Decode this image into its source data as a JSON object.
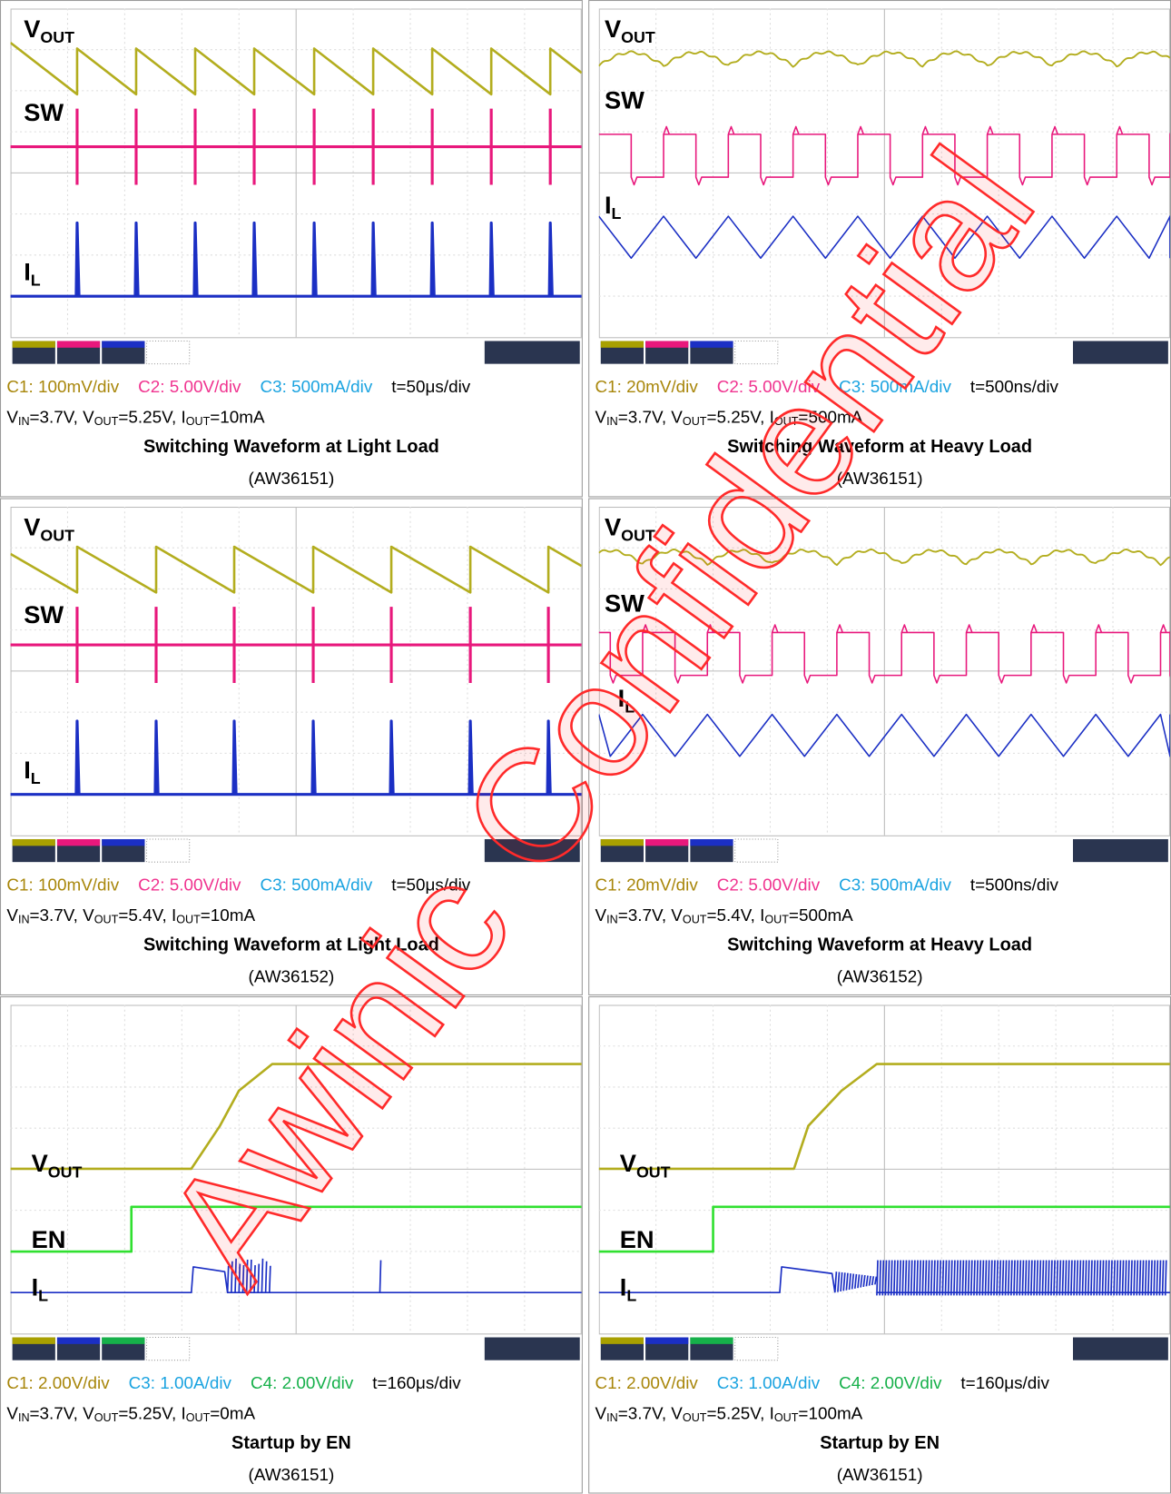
{
  "watermark": "Awinic Confidential",
  "panels": [
    {
      "scope_labels": [
        {
          "main": "V",
          "sub": "OUT"
        },
        {
          "main": "SW"
        },
        {
          "main": "I",
          "sub": "L"
        }
      ],
      "channels": [
        {
          "text": "C1: 100mV/div",
          "color": "#a8860a"
        },
        {
          "text": "C2: 5.00V/div",
          "color": "#f0338f"
        },
        {
          "text": "C3: 500mA/div",
          "color": "#1aa3e0"
        }
      ],
      "timebase": "t=50μs/div",
      "conditions": [
        {
          "text": "V"
        },
        {
          "sub": "IN"
        },
        {
          "text": "=3.7V, V"
        },
        {
          "sub": "OUT"
        },
        {
          "text": "=5.25V, I"
        },
        {
          "sub": "OUT"
        },
        {
          "text": "=10mA"
        }
      ],
      "title": "Switching Waveform at Light Load",
      "part": "(AW36151)"
    },
    {
      "scope_labels": [
        {
          "main": "V",
          "sub": "OUT"
        },
        {
          "main": "SW"
        },
        {
          "main": "I",
          "sub": "L"
        }
      ],
      "channels": [
        {
          "text": "C1: 20mV/div",
          "color": "#a8860a"
        },
        {
          "text": "C2: 5.00V/div",
          "color": "#f0338f"
        },
        {
          "text": "C3: 500mA/div",
          "color": "#1aa3e0"
        }
      ],
      "timebase": "t=500ns/div",
      "conditions": [
        {
          "text": "V"
        },
        {
          "sub": "IN"
        },
        {
          "text": "=3.7V, V"
        },
        {
          "sub": "OUT"
        },
        {
          "text": "=5.25V, I"
        },
        {
          "sub": "OUT"
        },
        {
          "text": "=500mA"
        }
      ],
      "title": "Switching Waveform at Heavy Load",
      "part": "(AW36151)"
    },
    {
      "scope_labels": [
        {
          "main": "V",
          "sub": "OUT"
        },
        {
          "main": "SW"
        },
        {
          "main": "I",
          "sub": "L"
        }
      ],
      "channels": [
        {
          "text": "C1: 100mV/div",
          "color": "#a8860a"
        },
        {
          "text": "C2: 5.00V/div",
          "color": "#f0338f"
        },
        {
          "text": "C3: 500mA/div",
          "color": "#1aa3e0"
        }
      ],
      "timebase": "t=50μs/div",
      "conditions": [
        {
          "text": "V"
        },
        {
          "sub": "IN"
        },
        {
          "text": "=3.7V, V"
        },
        {
          "sub": "OUT"
        },
        {
          "text": "=5.4V, I"
        },
        {
          "sub": "OUT"
        },
        {
          "text": "=10mA"
        }
      ],
      "title": "Switching Waveform at Light Load",
      "part": "(AW36152)"
    },
    {
      "scope_labels": [
        {
          "main": "V",
          "sub": "OUT"
        },
        {
          "main": "SW"
        },
        {
          "main": "I",
          "sub": "L"
        }
      ],
      "channels": [
        {
          "text": "C1: 20mV/div",
          "color": "#a8860a"
        },
        {
          "text": "C2: 5.00V/div",
          "color": "#f0338f"
        },
        {
          "text": "C3: 500mA/div",
          "color": "#1aa3e0"
        }
      ],
      "timebase": "t=500ns/div",
      "conditions": [
        {
          "text": "V"
        },
        {
          "sub": "IN"
        },
        {
          "text": "=3.7V, V"
        },
        {
          "sub": "OUT"
        },
        {
          "text": "=5.4V, I"
        },
        {
          "sub": "OUT"
        },
        {
          "text": "=500mA"
        }
      ],
      "title": "Switching Waveform at Heavy Load",
      "part": "(AW36152)"
    },
    {
      "scope_labels": [
        {
          "main": "V",
          "sub": "OUT"
        },
        {
          "main": "EN"
        },
        {
          "main": "I",
          "sub": "L"
        }
      ],
      "channels": [
        {
          "text": "C1: 2.00V/div",
          "color": "#a8860a"
        },
        {
          "text": "C3: 1.00A/div",
          "color": "#1aa3e0"
        },
        {
          "text": "C4: 2.00V/div",
          "color": "#16b04a"
        }
      ],
      "timebase": "t=160μs/div",
      "conditions": [
        {
          "text": "V"
        },
        {
          "sub": "IN"
        },
        {
          "text": "=3.7V, V"
        },
        {
          "sub": "OUT"
        },
        {
          "text": "=5.25V, I"
        },
        {
          "sub": "OUT"
        },
        {
          "text": "=0mA"
        }
      ],
      "title": "Startup by EN",
      "part": "(AW36151)"
    },
    {
      "scope_labels": [
        {
          "main": "V",
          "sub": "OUT"
        },
        {
          "main": "EN"
        },
        {
          "main": "I",
          "sub": "L"
        }
      ],
      "channels": [
        {
          "text": "C1: 2.00V/div",
          "color": "#a8860a"
        },
        {
          "text": "C3: 1.00A/div",
          "color": "#1aa3e0"
        },
        {
          "text": "C4: 2.00V/div",
          "color": "#16b04a"
        }
      ],
      "timebase": "t=160μs/div",
      "conditions": [
        {
          "text": "V"
        },
        {
          "sub": "IN"
        },
        {
          "text": "=3.7V, V"
        },
        {
          "sub": "OUT"
        },
        {
          "text": "=5.25V, I"
        },
        {
          "sub": "OUT"
        },
        {
          "text": "=100mA"
        }
      ],
      "title": "Startup by EN",
      "part": "(AW36151)"
    }
  ]
}
